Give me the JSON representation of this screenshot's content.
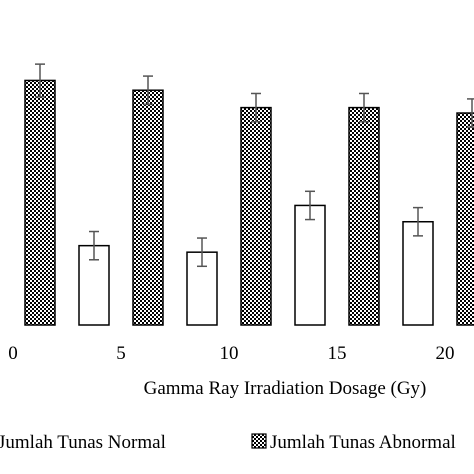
{
  "chart_data": {
    "type": "bar",
    "xlabel": "Gamma Ray Irradiation Dosage (Gy)",
    "ylabel": "",
    "categories": [
      "0",
      "5",
      "10",
      "15",
      "20"
    ],
    "ylim": [
      0,
      23
    ],
    "grid": false,
    "legend_position": "bottom",
    "series": [
      {
        "name": "Jumlah Tunas Normal",
        "pattern": "white-fill",
        "values": [
          null,
          7.3,
          6.7,
          11.0,
          9.5
        ],
        "errors": [
          null,
          1.3,
          1.3,
          1.3,
          1.3
        ]
      },
      {
        "name": "Jumlah Tunas Abnormal",
        "pattern": "crosshatch",
        "values": [
          22.5,
          21.6,
          20.0,
          20.0,
          19.5
        ],
        "errors": [
          1.5,
          1.3,
          1.3,
          1.3,
          1.3
        ]
      }
    ]
  },
  "colors": {
    "bar_outline": "#000000",
    "normal_fill": "#ffffff",
    "abnormal_pattern_dark": "#000000",
    "abnormal_pattern_light": "#ffffff",
    "error_bar": "#555555"
  }
}
